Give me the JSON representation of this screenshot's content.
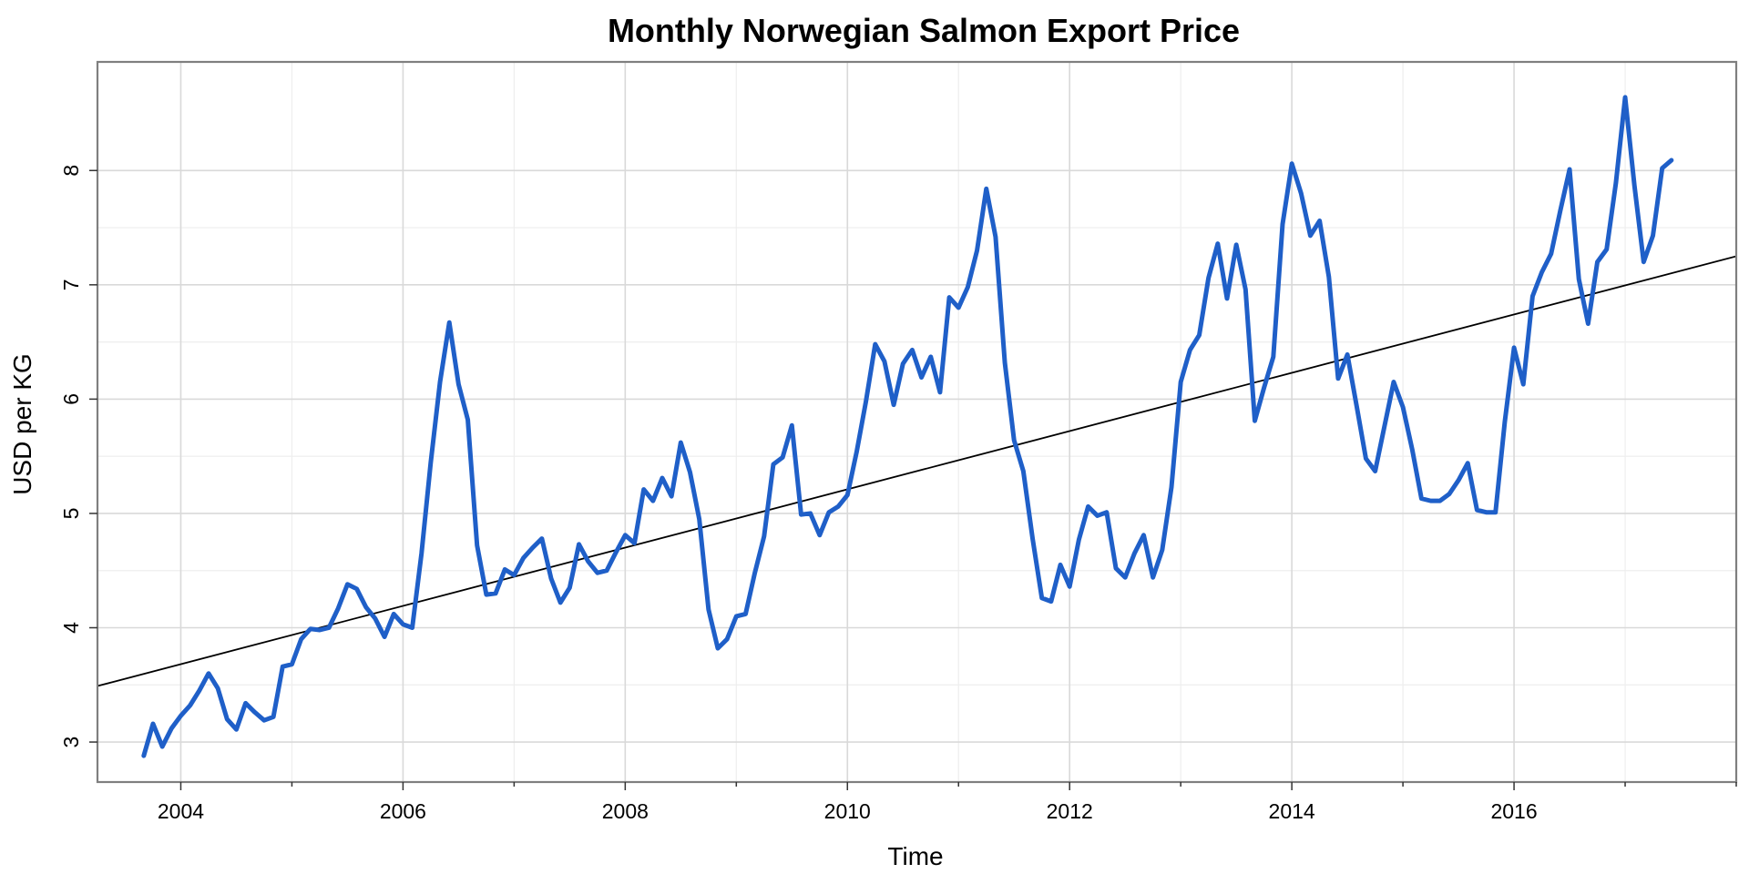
{
  "chart_data": {
    "type": "line",
    "title": "Monthly Norwegian Salmon Export Price",
    "xlabel": "Time",
    "ylabel": "USD per KG",
    "xlim": [
      2003.25,
      2018.0
    ],
    "ylim": [
      2.65,
      8.95
    ],
    "x_ticks": [
      2004,
      2006,
      2008,
      2010,
      2012,
      2014,
      2016
    ],
    "y_ticks": [
      3,
      4,
      5,
      6,
      7,
      8
    ],
    "grid": true,
    "series": [
      {
        "line_color": "#1f5fc8",
        "start": "2003-09",
        "frequency": "monthly",
        "values": [
          2.88,
          3.16,
          2.96,
          3.12,
          3.23,
          3.32,
          3.45,
          3.6,
          3.47,
          3.2,
          3.11,
          3.34,
          3.26,
          3.19,
          3.22,
          3.66,
          3.68,
          3.9,
          3.99,
          3.98,
          4.0,
          4.17,
          4.38,
          4.34,
          4.18,
          4.08,
          3.92,
          4.12,
          4.03,
          4.0,
          4.65,
          5.45,
          6.15,
          6.67,
          6.13,
          5.82,
          4.72,
          4.29,
          4.3,
          4.51,
          4.46,
          4.61,
          4.7,
          4.78,
          4.43,
          4.22,
          4.35,
          4.73,
          4.58,
          4.48,
          4.5,
          4.66,
          4.81,
          4.74,
          5.21,
          5.11,
          5.31,
          5.15,
          5.62,
          5.36,
          4.95,
          4.16,
          3.82,
          3.9,
          4.1,
          4.12,
          4.48,
          4.8,
          5.43,
          5.49,
          5.77,
          4.99,
          5.0,
          4.81,
          5.01,
          5.06,
          5.16,
          5.54,
          5.98,
          6.48,
          6.33,
          5.95,
          6.31,
          6.43,
          6.19,
          6.37,
          6.06,
          6.89,
          6.8,
          6.98,
          7.3,
          7.84,
          7.42,
          6.32,
          5.64,
          5.37,
          4.78,
          4.26,
          4.23,
          4.55,
          4.36,
          4.77,
          5.06,
          4.98,
          5.01,
          4.52,
          4.44,
          4.65,
          4.81,
          4.44,
          4.68,
          5.23,
          6.15,
          6.43,
          6.56,
          7.06,
          7.36,
          6.88,
          7.35,
          6.96,
          5.81,
          6.1,
          6.37,
          7.53,
          8.06,
          7.8,
          7.43,
          7.56,
          7.07,
          6.18,
          6.39,
          5.94,
          5.48,
          5.37,
          5.76,
          6.15,
          5.93,
          5.56,
          5.13,
          5.11,
          5.11,
          5.17,
          5.29,
          5.44,
          5.03,
          5.01,
          5.01,
          5.8,
          6.45,
          6.13,
          6.9,
          7.11,
          7.27,
          7.65,
          8.01,
          7.05,
          6.66,
          7.2,
          7.31,
          7.89,
          8.64,
          7.87,
          7.2,
          7.43,
          8.02,
          8.09
        ]
      },
      {
        "type": "trend",
        "line_color": "#000000",
        "points": [
          [
            2003.25,
            3.49
          ],
          [
            2018.0,
            7.25
          ]
        ]
      }
    ]
  }
}
